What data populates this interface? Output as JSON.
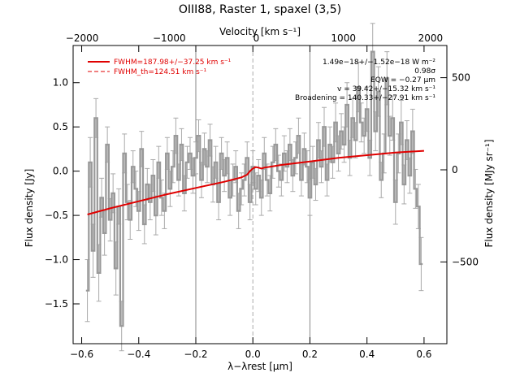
{
  "chart_data": {
    "type": "line",
    "title": "OIII88, Raster 1, spaxel (3,5)",
    "xlabel": "λ−λrest [μm]",
    "ylabel": "Flux density [Jy]",
    "x2label": "Velocity [km s⁻¹]",
    "y2label": "Flux density [MJy sr⁻¹]",
    "xlim": [
      -0.63,
      0.68
    ],
    "ylim": [
      -1.95,
      1.42
    ],
    "x2_ticks": [
      -2000,
      -1000,
      0,
      1000,
      2000
    ],
    "x2_tick_labels": [
      "−2000",
      "−1000",
      "0",
      "1000",
      "2000"
    ],
    "y2_ticks": [
      500,
      0,
      -500
    ],
    "y2_tick_labels": [
      "500",
      "0",
      "−500"
    ],
    "x_ticks": [
      -0.6,
      -0.4,
      -0.2,
      0.0,
      0.2,
      0.4,
      0.6
    ],
    "x_tick_labels": [
      "−0.6",
      "−0.4",
      "−0.2",
      "0.0",
      "0.2",
      "0.4",
      "0.6"
    ],
    "y_ticks": [
      1.0,
      0.5,
      0.0,
      -0.5,
      -1.0,
      -1.5
    ],
    "y_tick_labels": [
      "1.0",
      "0.5",
      "0.0",
      "−0.5",
      "−1.0",
      "−1.5"
    ],
    "vertical_lines": [
      -0.2,
      0.2
    ],
    "rest_line": 0.0,
    "legend": [
      {
        "label": "FWHM=187.98+/−37.25 km s⁻¹",
        "style": "solid",
        "color": "#e00000"
      },
      {
        "label": "FWHM_th=124.51 km s⁻¹",
        "style": "dashed",
        "color": "#e00000"
      }
    ],
    "annotations": [
      "1.49e−18+/−1.52e−18 W m⁻²",
      "0.98σ",
      "EQW = −0.27 μm",
      "v = 39.42+/−15.32 km s⁻¹",
      "Broadening = 140.33+/−27.91 km s⁻¹"
    ],
    "series": [
      {
        "type": "spectrum",
        "color": "#999999",
        "x": [
          -0.58,
          -0.57,
          -0.56,
          -0.55,
          -0.54,
          -0.53,
          -0.52,
          -0.51,
          -0.5,
          -0.49,
          -0.48,
          -0.47,
          -0.46,
          -0.45,
          -0.44,
          -0.43,
          -0.42,
          -0.41,
          -0.4,
          -0.39,
          -0.38,
          -0.37,
          -0.36,
          -0.35,
          -0.34,
          -0.33,
          -0.32,
          -0.31,
          -0.3,
          -0.29,
          -0.28,
          -0.27,
          -0.26,
          -0.25,
          -0.24,
          -0.23,
          -0.22,
          -0.21,
          -0.2,
          -0.19,
          -0.18,
          -0.17,
          -0.16,
          -0.15,
          -0.14,
          -0.13,
          -0.12,
          -0.11,
          -0.1,
          -0.09,
          -0.08,
          -0.07,
          -0.06,
          -0.05,
          -0.04,
          -0.03,
          -0.02,
          -0.01,
          0.0,
          0.01,
          0.02,
          0.03,
          0.04,
          0.05,
          0.06,
          0.07,
          0.08,
          0.09,
          0.1,
          0.11,
          0.12,
          0.13,
          0.14,
          0.15,
          0.16,
          0.17,
          0.18,
          0.19,
          0.2,
          0.21,
          0.22,
          0.23,
          0.24,
          0.25,
          0.26,
          0.27,
          0.28,
          0.29,
          0.3,
          0.31,
          0.32,
          0.33,
          0.34,
          0.35,
          0.36,
          0.37,
          0.38,
          0.39,
          0.4,
          0.41,
          0.42,
          0.43,
          0.44,
          0.45,
          0.46,
          0.47,
          0.48,
          0.49,
          0.5,
          0.51,
          0.52,
          0.53,
          0.54,
          0.55,
          0.56,
          0.57,
          0.58,
          0.59
        ],
        "values": [
          -1.35,
          0.1,
          -0.9,
          0.6,
          -1.15,
          -0.3,
          -0.7,
          0.3,
          -0.55,
          -0.25,
          -1.1,
          -0.4,
          -1.75,
          0.2,
          -0.35,
          -0.55,
          0.05,
          -0.2,
          -0.45,
          0.25,
          -0.6,
          -0.15,
          -0.35,
          -0.05,
          -0.5,
          0.1,
          -0.3,
          -0.45,
          0.2,
          -0.2,
          0.05,
          0.4,
          -0.1,
          0.3,
          -0.25,
          0.1,
          0.2,
          -0.05,
          0.15,
          0.4,
          -0.1,
          0.25,
          0.05,
          0.35,
          -0.15,
          0.1,
          -0.35,
          0.2,
          -0.05,
          0.15,
          -0.3,
          -0.1,
          0.05,
          -0.45,
          -0.2,
          -0.1,
          0.15,
          -0.35,
          0.05,
          -0.2,
          -0.05,
          -0.3,
          0.2,
          -0.1,
          -0.25,
          0.1,
          0.3,
          0.0,
          -0.1,
          0.2,
          0.05,
          0.3,
          -0.05,
          0.15,
          0.4,
          -0.1,
          0.25,
          0.05,
          -0.3,
          0.1,
          -0.15,
          0.35,
          0.05,
          0.5,
          -0.1,
          0.3,
          0.1,
          0.55,
          0.2,
          0.45,
          0.3,
          0.75,
          0.15,
          0.6,
          0.35,
          0.95,
          0.55,
          0.4,
          0.7,
          0.15,
          1.35,
          0.45,
          0.9,
          -0.1,
          0.2,
          1.05,
          0.4,
          0.6,
          -0.35,
          0.2,
          0.55,
          -0.15,
          0.35,
          -0.05,
          0.45,
          -0.2,
          -0.4,
          -1.05
        ],
        "errors": [
          0.35,
          0.28,
          0.3,
          0.22,
          0.32,
          0.22,
          0.25,
          0.2,
          0.24,
          0.22,
          0.3,
          0.2,
          0.28,
          0.22,
          0.2,
          0.22,
          0.18,
          0.2,
          0.22,
          0.2,
          0.22,
          0.18,
          0.2,
          0.18,
          0.22,
          0.18,
          0.2,
          0.2,
          0.18,
          0.2,
          0.18,
          0.2,
          0.18,
          0.18,
          0.2,
          0.18,
          0.18,
          0.2,
          0.18,
          0.18,
          0.2,
          0.18,
          0.18,
          0.18,
          0.2,
          0.18,
          0.2,
          0.18,
          0.18,
          0.18,
          0.2,
          0.18,
          0.18,
          0.2,
          0.18,
          0.18,
          0.18,
          0.2,
          0.18,
          0.18,
          0.18,
          0.2,
          0.18,
          0.18,
          0.2,
          0.18,
          0.18,
          0.18,
          0.18,
          0.2,
          0.18,
          0.18,
          0.18,
          0.18,
          0.2,
          0.18,
          0.18,
          0.18,
          0.2,
          0.18,
          0.18,
          0.2,
          0.18,
          0.22,
          0.18,
          0.2,
          0.18,
          0.22,
          0.2,
          0.2,
          0.2,
          0.25,
          0.2,
          0.22,
          0.2,
          0.28,
          0.22,
          0.2,
          0.25,
          0.2,
          0.32,
          0.22,
          0.28,
          0.2,
          0.22,
          0.3,
          0.22,
          0.25,
          0.25,
          0.22,
          0.25,
          0.22,
          0.22,
          0.2,
          0.25,
          0.22,
          0.25,
          0.3
        ]
      },
      {
        "name": "FWHM=187.98+/−37.25 km s⁻¹",
        "type": "model",
        "color": "#e00000",
        "x": [
          -0.58,
          -0.5,
          -0.4,
          -0.3,
          -0.2,
          -0.1,
          -0.04,
          -0.02,
          -0.01,
          0.0,
          0.01,
          0.02,
          0.03,
          0.04,
          0.06,
          0.1,
          0.2,
          0.3,
          0.4,
          0.5,
          0.6
        ],
        "values": [
          -0.49,
          -0.42,
          -0.34,
          -0.26,
          -0.19,
          -0.12,
          -0.07,
          -0.04,
          0.0,
          0.03,
          0.045,
          0.04,
          0.03,
          0.04,
          0.05,
          0.07,
          0.11,
          0.15,
          0.18,
          0.21,
          0.23
        ]
      }
    ]
  }
}
